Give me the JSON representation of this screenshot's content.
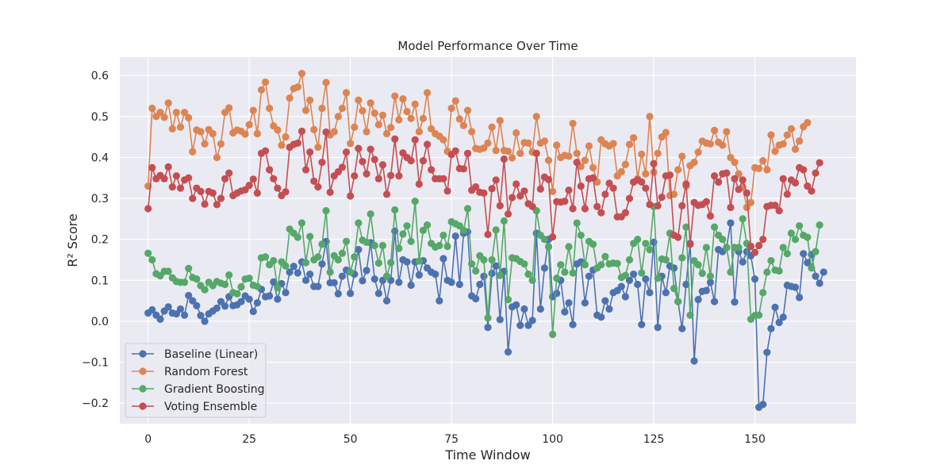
{
  "chart_data": {
    "type": "line",
    "title": "Model Performance Over Time",
    "xlabel": "Time Window",
    "ylabel": "R² Score",
    "xlim": [
      -7,
      175
    ],
    "ylim": [
      -0.25,
      0.645
    ],
    "xticks": [
      0,
      25,
      50,
      75,
      100,
      125,
      150
    ],
    "yticks": [
      -0.2,
      -0.1,
      0.0,
      0.1,
      0.2,
      0.3,
      0.4,
      0.5,
      0.6
    ],
    "ytick_labels": [
      "−0.2",
      "−0.1",
      "0.0",
      "0.1",
      "0.2",
      "0.3",
      "0.4",
      "0.5",
      "0.6"
    ],
    "grid": true,
    "legend_position": "lower-left",
    "series": [
      {
        "name": "Baseline (Linear)",
        "color": "#4c72b0",
        "values": [
          0.02,
          0.028,
          0.015,
          0.005,
          0.025,
          0.035,
          0.02,
          0.018,
          0.03,
          0.015,
          0.063,
          0.05,
          0.038,
          0.014,
          0.0,
          0.018,
          0.025,
          0.032,
          0.048,
          0.037,
          0.06,
          0.038,
          0.04,
          0.048,
          0.062,
          0.054,
          0.024,
          0.045,
          0.078,
          0.06,
          0.062,
          0.096,
          0.054,
          0.092,
          0.07,
          0.12,
          0.134,
          0.118,
          0.145,
          0.1,
          0.115,
          0.085,
          0.085,
          0.14,
          0.195,
          0.094,
          0.094,
          0.067,
          0.11,
          0.125,
          0.068,
          0.115,
          0.175,
          0.099,
          0.124,
          0.192,
          0.103,
          0.068,
          0.1,
          0.05,
          0.1,
          0.22,
          0.095,
          0.15,
          0.145,
          0.088,
          0.145,
          0.113,
          0.148,
          0.13,
          0.12,
          0.115,
          0.05,
          0.153,
          0.1,
          0.095,
          0.208,
          0.09,
          0.215,
          0.218,
          0.062,
          0.055,
          0.09,
          0.11,
          -0.015,
          0.117,
          0.135,
          0.004,
          0.122,
          -0.075,
          0.035,
          0.04,
          -0.01,
          0.03,
          -0.01,
          0.002,
          0.215,
          0.03,
          0.13,
          0.2,
          0.06,
          0.068,
          0.1,
          0.023,
          0.045,
          -0.008,
          0.14,
          0.145,
          0.045,
          0.11,
          0.125,
          0.015,
          0.01,
          0.05,
          0.03,
          0.07,
          0.075,
          0.085,
          0.06,
          0.1,
          0.115,
          0.09,
          -0.008,
          0.103,
          0.07,
          0.193,
          -0.015,
          0.11,
          0.07,
          0.135,
          0.13,
          0.048,
          -0.018,
          0.09,
          0.19,
          -0.097,
          0.053,
          0.073,
          0.075,
          0.095,
          0.048,
          0.175,
          0.17,
          0.18,
          0.24,
          0.047,
          0.17,
          0.145,
          0.17,
          0.16,
          0.103,
          -0.21,
          -0.203,
          -0.076,
          -0.018,
          0.034,
          -0.003,
          0.01,
          0.088,
          0.085,
          0.083,
          0.058,
          0.165,
          0.143,
          0.163,
          0.11,
          0.093,
          0.12
        ]
      },
      {
        "name": "Random Forest",
        "color": "#dd8452",
        "values": [
          0.33,
          0.52,
          0.5,
          0.51,
          0.498,
          0.533,
          0.47,
          0.51,
          0.474,
          0.51,
          0.497,
          0.414,
          0.467,
          0.463,
          0.433,
          0.468,
          0.458,
          0.4,
          0.433,
          0.51,
          0.521,
          0.46,
          0.467,
          0.464,
          0.457,
          0.48,
          0.515,
          0.458,
          0.565,
          0.584,
          0.52,
          0.477,
          0.467,
          0.43,
          0.45,
          0.545,
          0.568,
          0.572,
          0.605,
          0.515,
          0.54,
          0.468,
          0.425,
          0.52,
          0.583,
          0.455,
          0.463,
          0.5,
          0.52,
          0.558,
          0.434,
          0.474,
          0.54,
          0.514,
          0.463,
          0.533,
          0.508,
          0.48,
          0.503,
          0.458,
          0.473,
          0.55,
          0.492,
          0.543,
          0.512,
          0.495,
          0.53,
          0.463,
          0.495,
          0.558,
          0.47,
          0.458,
          0.452,
          0.443,
          0.415,
          0.52,
          0.538,
          0.494,
          0.478,
          0.515,
          0.463,
          0.422,
          0.42,
          0.423,
          0.435,
          0.474,
          0.417,
          0.49,
          0.417,
          0.415,
          0.399,
          0.46,
          0.41,
          0.436,
          0.435,
          0.413,
          0.5,
          0.435,
          0.44,
          0.393,
          0.317,
          0.43,
          0.4,
          0.405,
          0.403,
          0.483,
          0.41,
          0.378,
          0.393,
          0.428,
          0.375,
          0.34,
          0.443,
          0.433,
          0.428,
          0.434,
          0.355,
          0.365,
          0.383,
          0.432,
          0.448,
          0.348,
          0.408,
          0.36,
          0.5,
          0.364,
          0.41,
          0.45,
          0.461,
          0.307,
          0.31,
          0.37,
          0.403,
          0.33,
          0.38,
          0.388,
          0.413,
          0.44,
          0.435,
          0.433,
          0.466,
          0.437,
          0.43,
          0.463,
          0.4,
          0.388,
          0.36,
          0.328,
          0.278,
          0.29,
          0.375,
          0.373,
          0.392,
          0.37,
          0.455,
          0.415,
          0.43,
          0.433,
          0.455,
          0.47,
          0.42,
          0.44,
          0.475,
          0.485
        ]
      },
      {
        "name": "Gradient Boosting",
        "color": "#55a868",
        "values": [
          0.166,
          0.15,
          0.116,
          0.111,
          0.122,
          0.122,
          0.106,
          0.097,
          0.095,
          0.095,
          0.129,
          0.107,
          0.103,
          0.087,
          0.077,
          0.095,
          0.087,
          0.097,
          0.093,
          0.09,
          0.113,
          0.07,
          0.067,
          0.084,
          0.103,
          0.105,
          0.088,
          0.085,
          0.155,
          0.157,
          0.138,
          0.148,
          0.082,
          0.145,
          0.135,
          0.225,
          0.215,
          0.205,
          0.24,
          0.143,
          0.207,
          0.15,
          0.157,
          0.188,
          0.27,
          0.12,
          0.16,
          0.15,
          0.166,
          0.195,
          0.12,
          0.157,
          0.24,
          0.198,
          0.193,
          0.262,
          0.185,
          0.142,
          0.185,
          0.11,
          0.143,
          0.272,
          0.178,
          0.213,
          0.233,
          0.195,
          0.293,
          0.147,
          0.222,
          0.235,
          0.19,
          0.181,
          0.185,
          0.21,
          0.183,
          0.243,
          0.238,
          0.233,
          0.222,
          0.275,
          0.14,
          0.123,
          0.16,
          0.15,
          0.008,
          0.15,
          0.223,
          0.112,
          0.245,
          0.053,
          0.155,
          0.153,
          0.146,
          0.14,
          0.115,
          0.1,
          0.27,
          0.21,
          0.2,
          0.182,
          -0.032,
          0.105,
          0.138,
          0.12,
          0.182,
          0.118,
          0.24,
          0.21,
          0.138,
          0.195,
          0.188,
          0.13,
          0.138,
          0.158,
          0.14,
          0.142,
          0.141,
          0.107,
          0.112,
          0.15,
          0.19,
          0.2,
          0.118,
          0.19,
          0.175,
          0.28,
          0.105,
          0.152,
          0.15,
          0.215,
          0.08,
          0.048,
          0.155,
          0.23,
          0.015,
          0.148,
          0.138,
          0.117,
          0.18,
          0.11,
          0.23,
          0.21,
          0.2,
          0.18,
          0.12,
          0.18,
          0.18,
          0.25,
          0.19,
          0.005,
          0.014,
          0.015,
          0.07,
          0.12,
          0.148,
          0.125,
          0.123,
          0.18,
          0.165,
          0.215,
          0.2,
          0.233,
          0.21,
          0.205,
          0.13,
          0.17,
          0.235
        ]
      },
      {
        "name": "Voting Ensemble",
        "color": "#c44e52",
        "values": [
          0.275,
          0.375,
          0.348,
          0.356,
          0.348,
          0.377,
          0.328,
          0.355,
          0.325,
          0.345,
          0.35,
          0.3,
          0.325,
          0.317,
          0.286,
          0.317,
          0.313,
          0.285,
          0.3,
          0.348,
          0.362,
          0.307,
          0.313,
          0.318,
          0.321,
          0.332,
          0.347,
          0.313,
          0.41,
          0.416,
          0.37,
          0.348,
          0.325,
          0.307,
          0.316,
          0.425,
          0.432,
          0.435,
          0.464,
          0.37,
          0.413,
          0.342,
          0.328,
          0.388,
          0.462,
          0.315,
          0.355,
          0.365,
          0.376,
          0.413,
          0.306,
          0.355,
          0.422,
          0.39,
          0.36,
          0.42,
          0.395,
          0.348,
          0.382,
          0.31,
          0.356,
          0.445,
          0.355,
          0.411,
          0.4,
          0.392,
          0.443,
          0.335,
          0.392,
          0.432,
          0.37,
          0.348,
          0.348,
          0.348,
          0.318,
          0.407,
          0.416,
          0.373,
          0.372,
          0.41,
          0.32,
          0.328,
          0.315,
          0.313,
          0.212,
          0.324,
          0.345,
          0.282,
          0.396,
          0.262,
          0.302,
          0.335,
          0.306,
          0.318,
          0.287,
          0.28,
          0.41,
          0.323,
          0.352,
          0.346,
          0.206,
          0.292,
          0.291,
          0.293,
          0.32,
          0.275,
          0.388,
          0.33,
          0.275,
          0.348,
          0.35,
          0.28,
          0.265,
          0.31,
          0.337,
          0.325,
          0.255,
          0.255,
          0.265,
          0.3,
          0.34,
          0.345,
          0.34,
          0.325,
          0.285,
          0.385,
          0.282,
          0.303,
          0.355,
          0.357,
          0.21,
          0.205,
          0.282,
          0.335,
          0.188,
          0.29,
          0.283,
          0.285,
          0.292,
          0.257,
          0.355,
          0.34,
          0.36,
          0.362,
          0.278,
          0.348,
          0.322,
          0.345,
          0.313,
          0.183,
          0.168,
          0.185,
          0.2,
          0.28,
          0.283,
          0.283,
          0.27,
          0.348,
          0.31,
          0.345,
          0.338,
          0.375,
          0.37,
          0.33,
          0.318,
          0.362,
          0.387
        ]
      }
    ]
  }
}
